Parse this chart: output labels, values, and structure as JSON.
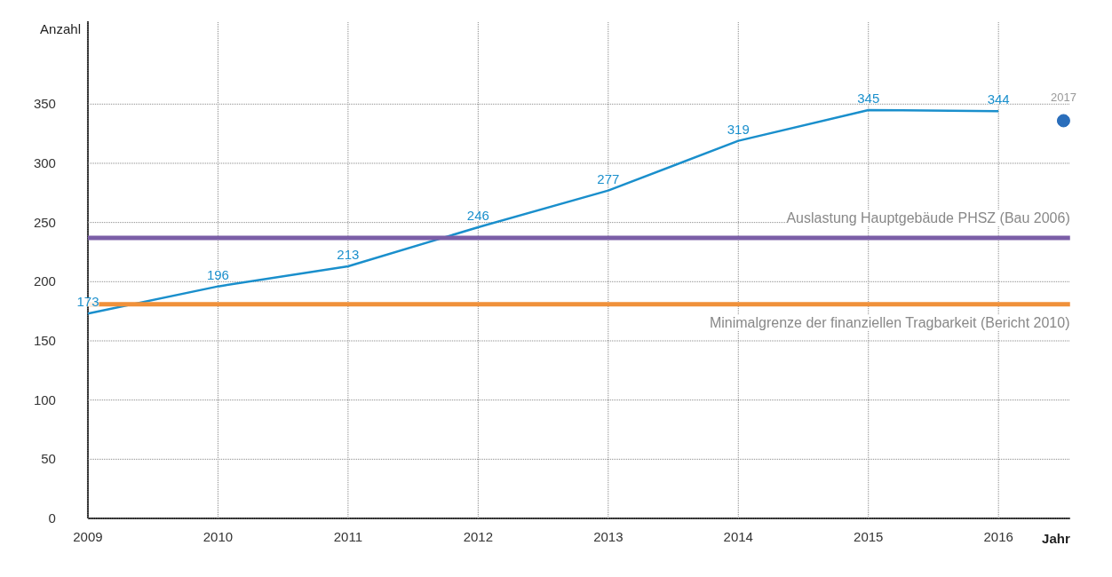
{
  "chart_data": {
    "type": "line",
    "xlabel": "Jahr",
    "ylabel": "Anzahl",
    "x": [
      2009,
      2010,
      2011,
      2012,
      2013,
      2014,
      2015,
      2016
    ],
    "series": [
      {
        "color": "#1a8fcc",
        "values": [
          173,
          196,
          213,
          246,
          277,
          319,
          345,
          344
        ],
        "value_labels": [
          "173",
          "196",
          "213",
          "246",
          "277",
          "319",
          "345",
          "344"
        ]
      },
      {
        "type": "scatter",
        "color": "#2a6ebb",
        "x": [
          2016.5
        ],
        "values": [
          336
        ]
      }
    ],
    "annotations": [
      {
        "text": "2017",
        "x": 2016.5,
        "y": 336
      }
    ],
    "ref_lines": [
      {
        "axis": "y",
        "value": 237,
        "label": "Auslastung Hauptgebäude PHSZ (Bau 2006)",
        "color": "#7b5ea7"
      },
      {
        "axis": "y",
        "value": 181,
        "label": "Minimalgrenze der finanziellen Tragbarkeit (Bericht 2010)",
        "color": "#f0913a"
      }
    ],
    "xlim": [
      2009,
      2016.55
    ],
    "ylim": [
      0,
      420
    ],
    "xticks": [
      2009,
      2010,
      2011,
      2012,
      2013,
      2014,
      2015,
      2016
    ],
    "yticks": [
      0,
      50,
      100,
      150,
      200,
      250,
      300,
      350
    ],
    "grid": true,
    "line_style": "solid"
  }
}
